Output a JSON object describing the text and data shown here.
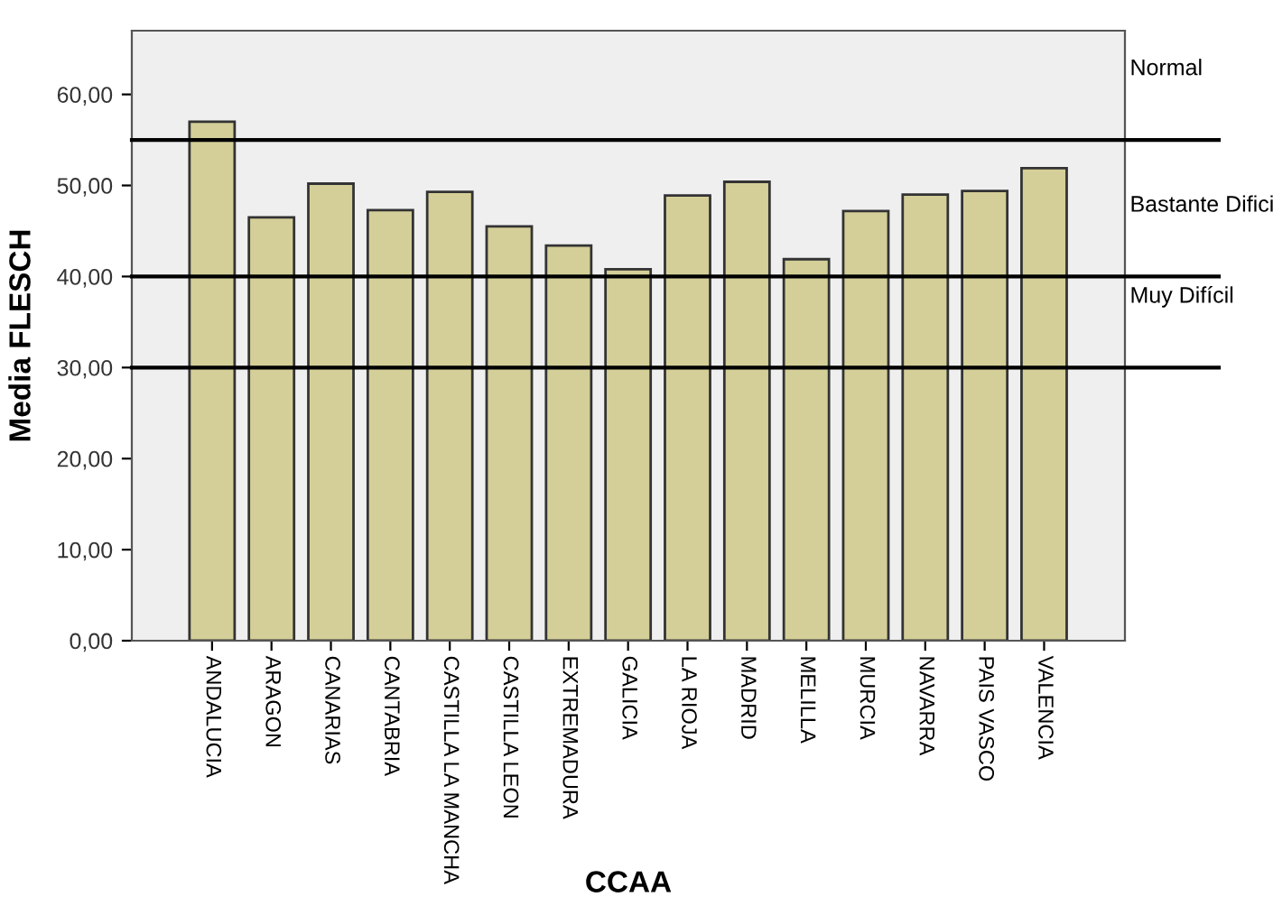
{
  "chart_data": {
    "type": "bar",
    "xlabel": "CCAA",
    "ylabel": "Media FLESCH",
    "categories": [
      "ANDALUCIA",
      "ARAGON",
      "CANARIAS",
      "CANTABRIA",
      "CASTILLA LA MANCHA",
      "CASTILLA LEON",
      "EXTREMADURA",
      "GALICIA",
      "LA RIOJA",
      "MADRID",
      "MELILLA",
      "MURCIA",
      "NAVARRA",
      "PAIS VASCO",
      "VALENCIA"
    ],
    "values": [
      57.0,
      46.5,
      50.2,
      47.3,
      49.3,
      45.5,
      43.4,
      40.8,
      48.9,
      50.4,
      41.9,
      47.2,
      49.0,
      49.4,
      51.9
    ],
    "color": "#d4cf98",
    "ylim": [
      0,
      67
    ],
    "yticks": [
      {
        "value": 0,
        "label": "0,00"
      },
      {
        "value": 10,
        "label": "10,00"
      },
      {
        "value": 20,
        "label": "20,00"
      },
      {
        "value": 30,
        "label": "30,00"
      },
      {
        "value": 40,
        "label": "40,00"
      },
      {
        "value": 50,
        "label": "50,00"
      },
      {
        "value": 60,
        "label": "60,00"
      }
    ],
    "grid": false,
    "ref_lines": [
      {
        "axis": "y",
        "value": 55,
        "label": "Normal",
        "color": "#000000"
      },
      {
        "axis": "y",
        "value": 40,
        "label": "Bastante Difici",
        "color": "#000000"
      },
      {
        "axis": "y",
        "value": 30,
        "label": "Muy Difícil",
        "color": "#000000"
      }
    ]
  }
}
